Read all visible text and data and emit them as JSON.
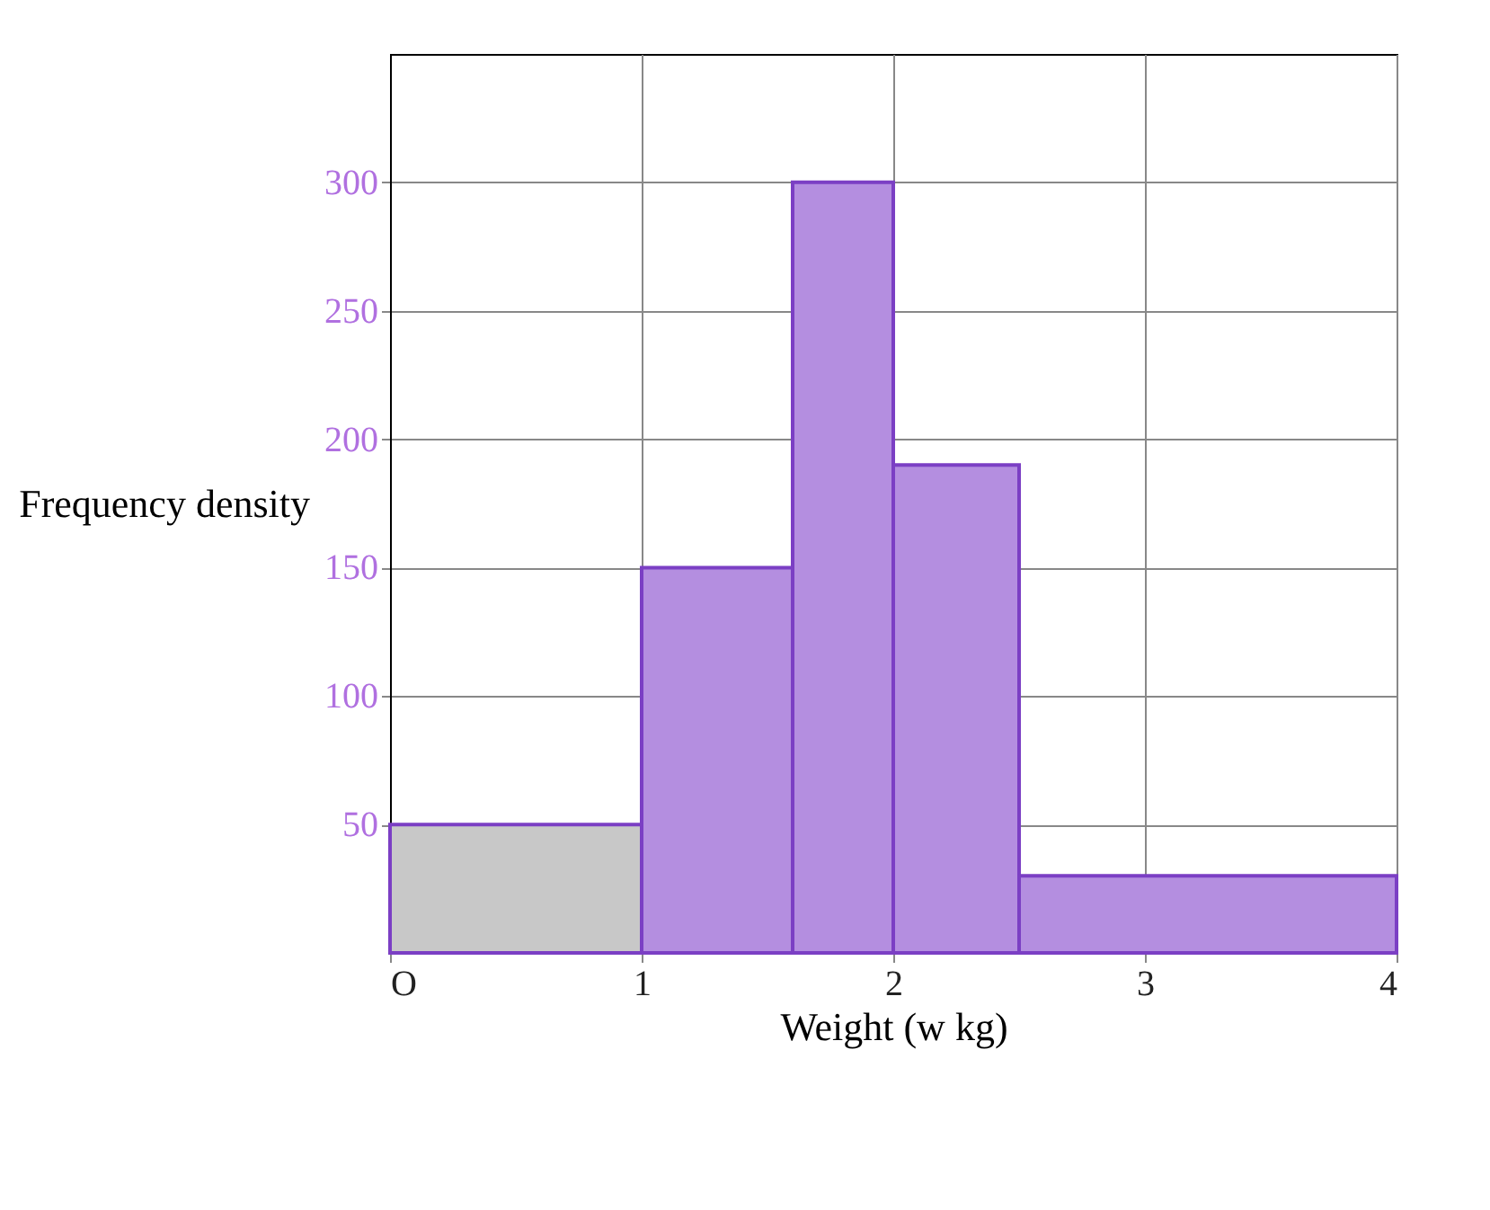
{
  "chart_data": {
    "type": "histogram",
    "xlabel": "Weight (w kg)",
    "ylabel": "Frequency density",
    "bins": [
      0,
      1,
      1.6,
      2,
      2.5,
      4
    ],
    "values": [
      50,
      150,
      300,
      190,
      30
    ],
    "colors": [
      "#c8c8c8",
      "#b48ee0",
      "#b48ee0",
      "#b48ee0",
      "#b48ee0"
    ],
    "xlim": [
      0,
      4
    ],
    "ylim": [
      0,
      350
    ],
    "xticks": [
      {
        "value": 0,
        "label": "O"
      },
      1,
      2,
      3,
      4
    ],
    "yticks": [
      50,
      100,
      150,
      200,
      250,
      300
    ],
    "grid": true
  }
}
